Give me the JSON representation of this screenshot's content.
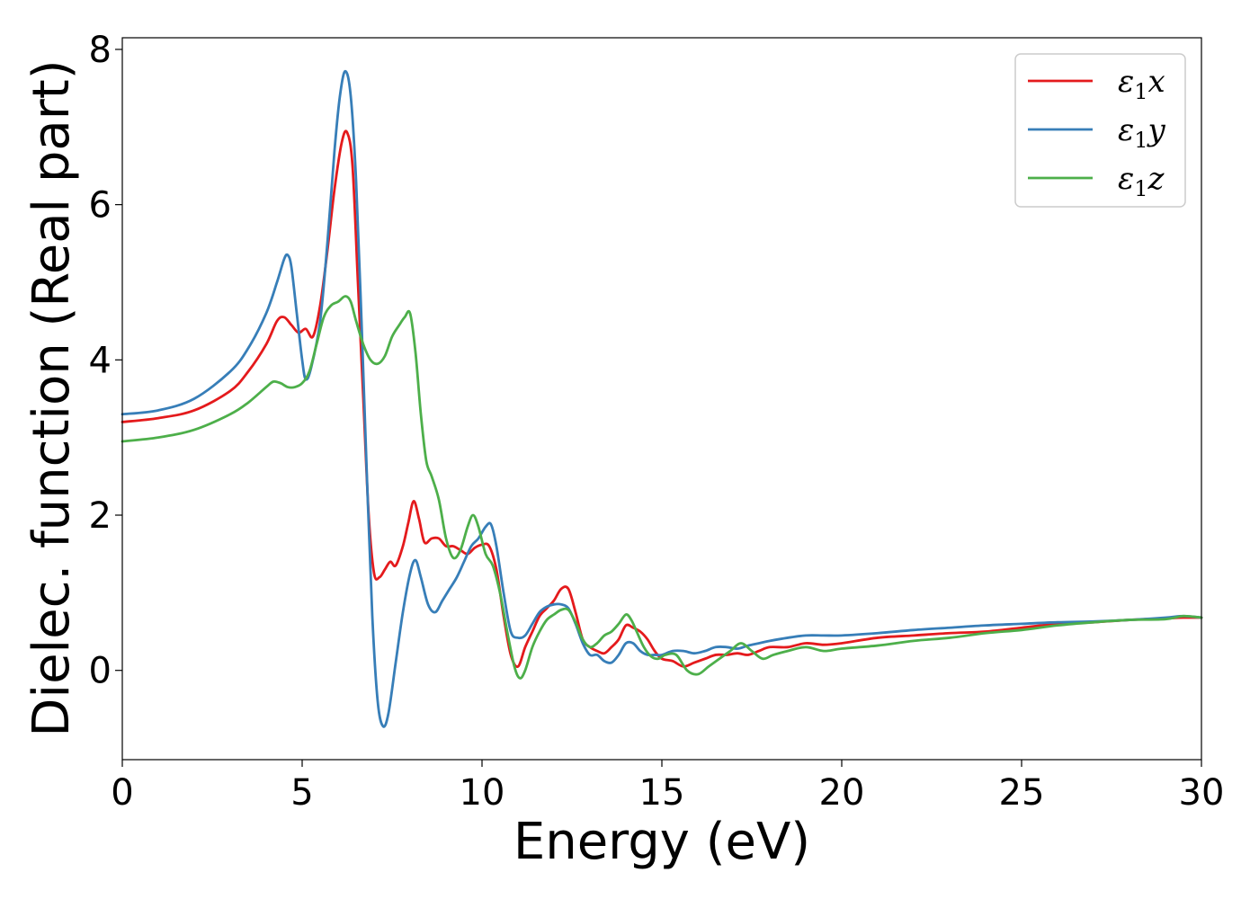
{
  "chart_data": {
    "type": "line",
    "xlabel": "Energy (eV)",
    "ylabel": "Dielec. function (Real part)",
    "xlim": [
      0,
      30
    ],
    "ylim": [
      -1.15,
      8.15
    ],
    "xticks": [
      0,
      5,
      10,
      15,
      20,
      25,
      30
    ],
    "xtick_labels": [
      "0",
      "5",
      "10",
      "15",
      "20",
      "25",
      "30"
    ],
    "yticks": [
      0,
      2,
      4,
      6,
      8
    ],
    "ytick_labels": [
      "0",
      "2",
      "4",
      "6",
      "8"
    ],
    "grid": false,
    "legend_position": "top-right",
    "series": [
      {
        "name": "ε₁x",
        "legend_main": "ε",
        "legend_sub": "1",
        "legend_var": "x",
        "color": "#e41a1c",
        "x": [
          0,
          1,
          2,
          3,
          3.5,
          4,
          4.3,
          4.5,
          4.7,
          4.9,
          5.1,
          5.3,
          5.5,
          5.7,
          5.9,
          6.1,
          6.25,
          6.4,
          6.55,
          6.7,
          6.85,
          7.0,
          7.15,
          7.3,
          7.45,
          7.6,
          7.8,
          7.95,
          8.1,
          8.25,
          8.4,
          8.6,
          8.8,
          9.0,
          9.2,
          9.4,
          9.6,
          9.8,
          10.0,
          10.2,
          10.4,
          10.6,
          10.8,
          11.0,
          11.2,
          11.4,
          11.6,
          11.8,
          12.0,
          12.2,
          12.4,
          12.6,
          12.8,
          13.0,
          13.2,
          13.4,
          13.6,
          13.8,
          14.0,
          14.2,
          14.4,
          14.6,
          14.8,
          15.0,
          15.3,
          15.6,
          15.9,
          16.2,
          16.5,
          16.8,
          17.1,
          17.4,
          17.7,
          18.0,
          18.5,
          19.0,
          19.5,
          20.0,
          21.0,
          22.0,
          23.0,
          24.0,
          25.0,
          26.0,
          27.0,
          28.0,
          29.0,
          29.5,
          30.0
        ],
        "y": [
          3.2,
          3.25,
          3.35,
          3.6,
          3.85,
          4.2,
          4.5,
          4.55,
          4.45,
          4.35,
          4.4,
          4.3,
          4.7,
          5.4,
          6.2,
          6.8,
          6.93,
          6.5,
          5.0,
          3.5,
          2.0,
          1.25,
          1.2,
          1.3,
          1.4,
          1.35,
          1.6,
          1.9,
          2.18,
          1.95,
          1.65,
          1.7,
          1.7,
          1.6,
          1.6,
          1.55,
          1.5,
          1.58,
          1.62,
          1.6,
          1.3,
          0.7,
          0.2,
          0.05,
          0.3,
          0.5,
          0.7,
          0.8,
          0.9,
          1.05,
          1.05,
          0.75,
          0.4,
          0.3,
          0.25,
          0.22,
          0.3,
          0.4,
          0.58,
          0.55,
          0.5,
          0.4,
          0.25,
          0.15,
          0.12,
          0.05,
          0.1,
          0.15,
          0.2,
          0.2,
          0.22,
          0.2,
          0.25,
          0.3,
          0.3,
          0.35,
          0.33,
          0.35,
          0.42,
          0.45,
          0.48,
          0.5,
          0.55,
          0.6,
          0.62,
          0.65,
          0.67,
          0.68,
          0.68
        ]
      },
      {
        "name": "ε₁y",
        "legend_main": "ε",
        "legend_sub": "1",
        "legend_var": "y",
        "color": "#377eb8",
        "x": [
          0,
          1,
          2,
          3,
          3.5,
          4,
          4.3,
          4.5,
          4.6,
          4.7,
          4.85,
          5.0,
          5.1,
          5.25,
          5.5,
          5.7,
          5.9,
          6.05,
          6.2,
          6.35,
          6.5,
          6.65,
          6.8,
          6.95,
          7.1,
          7.25,
          7.4,
          7.6,
          7.8,
          8.0,
          8.15,
          8.3,
          8.5,
          8.7,
          8.9,
          9.1,
          9.3,
          9.5,
          9.7,
          9.9,
          10.1,
          10.25,
          10.4,
          10.6,
          10.8,
          11.0,
          11.2,
          11.4,
          11.6,
          11.8,
          12.0,
          12.2,
          12.4,
          12.6,
          12.8,
          13.0,
          13.2,
          13.4,
          13.6,
          13.8,
          14.0,
          14.2,
          14.4,
          14.6,
          14.8,
          15.0,
          15.3,
          15.6,
          15.9,
          16.2,
          16.5,
          16.8,
          17.1,
          17.4,
          17.7,
          18.0,
          18.5,
          19.0,
          19.5,
          20.0,
          21.0,
          22.0,
          23.0,
          24.0,
          25.0,
          26.0,
          27.0,
          28.0,
          29.0,
          29.5,
          30.0
        ],
        "y": [
          3.3,
          3.35,
          3.5,
          3.85,
          4.15,
          4.6,
          5.0,
          5.3,
          5.35,
          5.2,
          4.6,
          4.0,
          3.75,
          3.9,
          4.5,
          5.5,
          6.7,
          7.4,
          7.72,
          7.4,
          6.3,
          4.5,
          2.5,
          0.7,
          -0.4,
          -0.72,
          -0.55,
          0.1,
          0.75,
          1.25,
          1.42,
          1.2,
          0.85,
          0.75,
          0.9,
          1.05,
          1.2,
          1.4,
          1.6,
          1.7,
          1.85,
          1.88,
          1.6,
          1.0,
          0.5,
          0.42,
          0.45,
          0.6,
          0.75,
          0.82,
          0.85,
          0.85,
          0.8,
          0.6,
          0.35,
          0.2,
          0.2,
          0.12,
          0.1,
          0.2,
          0.35,
          0.35,
          0.25,
          0.2,
          0.2,
          0.2,
          0.25,
          0.25,
          0.22,
          0.25,
          0.3,
          0.3,
          0.28,
          0.32,
          0.35,
          0.38,
          0.42,
          0.45,
          0.45,
          0.45,
          0.48,
          0.52,
          0.55,
          0.58,
          0.6,
          0.62,
          0.63,
          0.65,
          0.68,
          0.7,
          0.68
        ]
      },
      {
        "name": "ε₁z",
        "legend_main": "ε",
        "legend_sub": "1",
        "legend_var": "z",
        "color": "#4daf4a",
        "x": [
          0,
          1,
          2,
          3,
          3.5,
          4,
          4.2,
          4.4,
          4.6,
          4.8,
          5.0,
          5.2,
          5.4,
          5.6,
          5.8,
          6.0,
          6.2,
          6.35,
          6.5,
          6.7,
          6.9,
          7.1,
          7.3,
          7.5,
          7.7,
          7.85,
          8.0,
          8.15,
          8.3,
          8.45,
          8.6,
          8.8,
          9.0,
          9.2,
          9.4,
          9.6,
          9.75,
          9.9,
          10.1,
          10.3,
          10.5,
          10.7,
          10.9,
          11.05,
          11.2,
          11.4,
          11.6,
          11.8,
          12.0,
          12.2,
          12.4,
          12.6,
          12.8,
          13.0,
          13.2,
          13.4,
          13.6,
          13.8,
          14.0,
          14.15,
          14.3,
          14.5,
          14.7,
          14.9,
          15.1,
          15.4,
          15.7,
          16.0,
          16.3,
          16.6,
          16.9,
          17.2,
          17.5,
          17.8,
          18.1,
          18.5,
          19.0,
          19.5,
          20.0,
          21.0,
          22.0,
          23.0,
          24.0,
          25.0,
          26.0,
          27.0,
          28.0,
          29.0,
          29.5,
          30.0
        ],
        "y": [
          2.95,
          3.0,
          3.1,
          3.3,
          3.45,
          3.65,
          3.72,
          3.7,
          3.65,
          3.65,
          3.7,
          3.85,
          4.2,
          4.55,
          4.7,
          4.75,
          4.82,
          4.75,
          4.5,
          4.2,
          4.0,
          3.95,
          4.05,
          4.3,
          4.45,
          4.55,
          4.6,
          4.1,
          3.3,
          2.7,
          2.5,
          2.2,
          1.7,
          1.45,
          1.55,
          1.85,
          2.0,
          1.85,
          1.5,
          1.35,
          1.0,
          0.5,
          0.05,
          -0.1,
          0.0,
          0.3,
          0.5,
          0.65,
          0.72,
          0.78,
          0.78,
          0.62,
          0.4,
          0.3,
          0.35,
          0.45,
          0.5,
          0.6,
          0.72,
          0.65,
          0.5,
          0.3,
          0.18,
          0.15,
          0.2,
          0.2,
          0.0,
          -0.05,
          0.05,
          0.15,
          0.25,
          0.35,
          0.25,
          0.15,
          0.2,
          0.25,
          0.3,
          0.25,
          0.28,
          0.32,
          0.38,
          0.42,
          0.48,
          0.52,
          0.58,
          0.62,
          0.65,
          0.66,
          0.7,
          0.68
        ]
      }
    ]
  }
}
